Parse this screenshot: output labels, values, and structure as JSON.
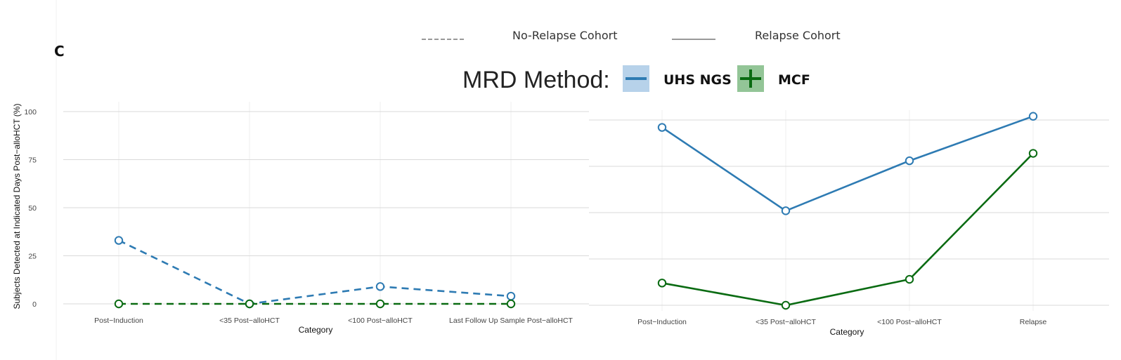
{
  "panel_label": "C",
  "legend": {
    "title": "MRD Method:",
    "entries": [
      {
        "name": "UHS NGS",
        "color": "#2e7bb3",
        "glyph": "dash-icon"
      },
      {
        "name": "MCF",
        "color": "#0a6b12",
        "glyph": "plus-icon"
      }
    ],
    "cohorts": [
      {
        "name": "No-Relapse Cohort",
        "linestyle": "dashed"
      },
      {
        "name": "Relapse Cohort",
        "linestyle": "solid"
      }
    ]
  },
  "colors": {
    "uhs_ngs": "#2e7bb3",
    "mcf": "#0a6b12",
    "grid": "#d9d9d9",
    "grid_minor": "#efefef"
  },
  "chart_data": [
    {
      "type": "line",
      "cohort": "No-Relapse Cohort",
      "linestyle": "dashed",
      "categories": [
        "Post−Induction",
        "<35 Post−alloHCT",
        "<100 Post−alloHCT",
        "Last Follow Up Sample Post−alloHCT"
      ],
      "series": [
        {
          "name": "UHS NGS",
          "values": [
            33,
            0,
            9,
            4
          ]
        },
        {
          "name": "MCF",
          "values": [
            0,
            0,
            0,
            0
          ]
        }
      ],
      "xlabel": "Category",
      "ylabel": "Subjects Detected at Indicated Days Post−alloHCT (%)",
      "ylim": [
        0,
        100
      ],
      "yticks": [
        0,
        25,
        50,
        75,
        100
      ],
      "grid": true
    },
    {
      "type": "line",
      "cohort": "Relapse Cohort",
      "linestyle": "solid",
      "categories": [
        "Post−Induction",
        "<35 Post−alloHCT",
        "<100 Post−alloHCT",
        "Relapse"
      ],
      "series": [
        {
          "name": "UHS NGS",
          "values": [
            96,
            51,
            78,
            102
          ]
        },
        {
          "name": "MCF",
          "values": [
            12,
            0,
            14,
            82
          ]
        }
      ],
      "xlabel": "Category",
      "ylabel": "",
      "ylim": [
        0,
        100
      ],
      "grid": true
    }
  ]
}
